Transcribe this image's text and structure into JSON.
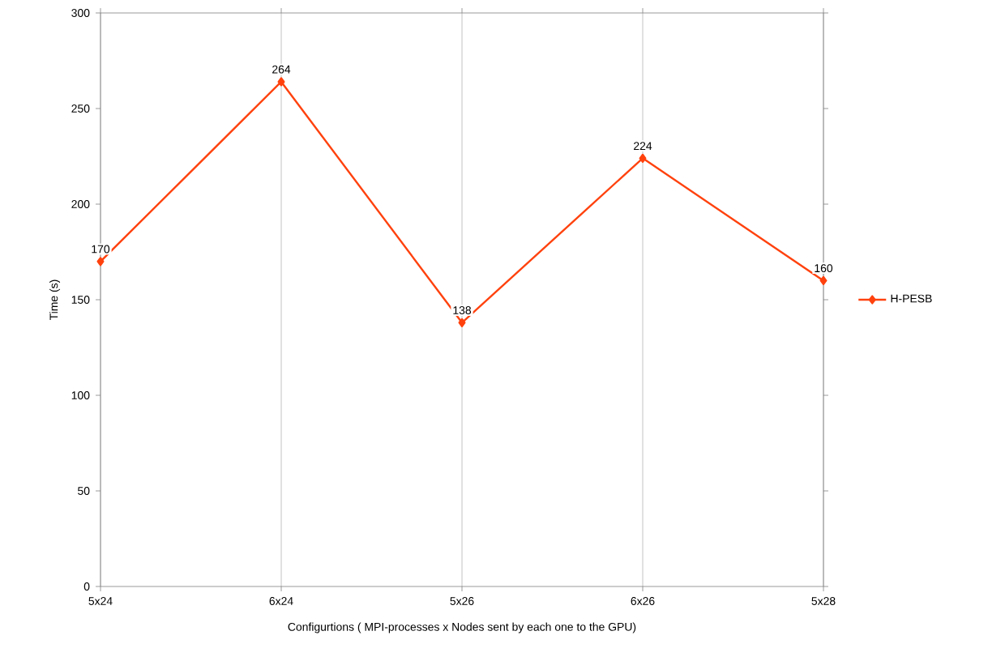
{
  "chart_data": {
    "type": "line",
    "xlabel": "Configurtions ( MPI-processes x Nodes sent by each one to the GPU)",
    "ylabel": "Time (s)",
    "categories": [
      "5x24",
      "6x24",
      "5x26",
      "6x26",
      "5x28"
    ],
    "series": [
      {
        "name": "H-PESB",
        "color": "#ff420e",
        "values": [
          170,
          264,
          138,
          224,
          160
        ]
      }
    ],
    "ylim": [
      0,
      300
    ],
    "yticks": [
      0,
      50,
      100,
      150,
      200,
      250,
      300
    ],
    "grid": "x",
    "legend": "right",
    "marker": "diamond",
    "line_style": "solid",
    "data_labels": true
  }
}
